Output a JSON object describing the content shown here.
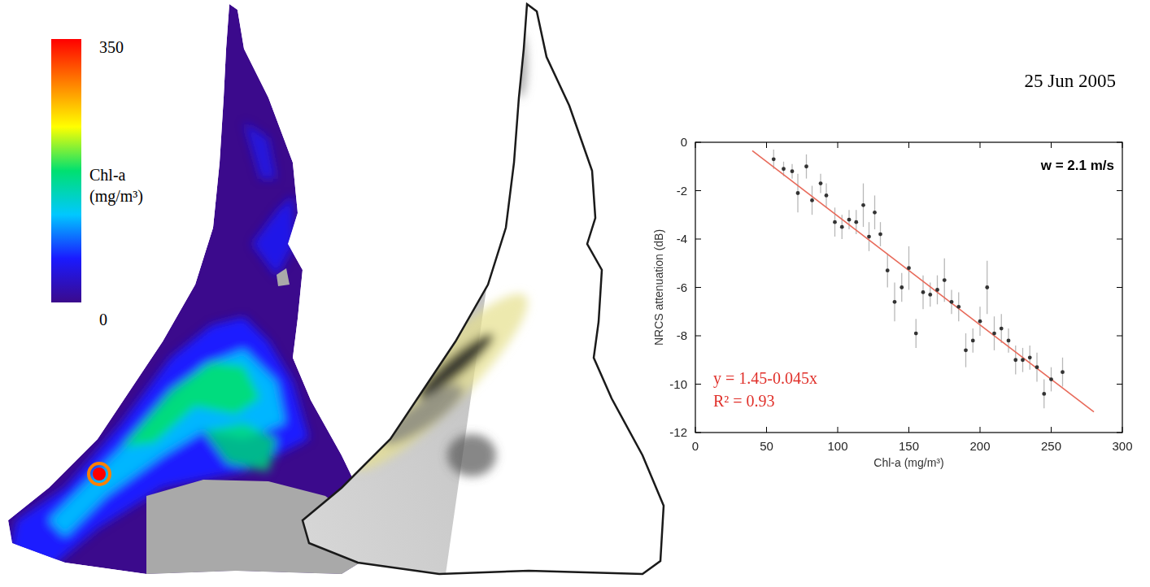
{
  "maps": {
    "colorbar": {
      "label_lines": [
        "Chl-a",
        "(mg/m³)"
      ],
      "range": [
        0,
        350
      ],
      "ticks": [
        0,
        350
      ],
      "colors": [
        "#3b0a8c",
        "#1a1aff",
        "#00c8ff",
        "#00e070",
        "#ffff00",
        "#ff8000",
        "#ff0000"
      ]
    }
  },
  "chart_data": {
    "type": "scatter",
    "title": "25 Jun 2005",
    "annotations": [
      {
        "text": "w = 2.1 m/s",
        "color": "#000000"
      },
      {
        "text": "y = 1.45-0.045x",
        "color": "#e0302a"
      },
      {
        "text": "R² = 0.93",
        "color": "#e0302a"
      }
    ],
    "x_label": "Chl-a (mg/m³)",
    "y_label": "NRCS attenuation (dB)",
    "x": [
      55,
      62,
      68,
      72,
      78,
      82,
      88,
      92,
      98,
      103,
      108,
      113,
      118,
      122,
      126,
      130,
      135,
      140,
      145,
      150,
      155,
      160,
      165,
      170,
      175,
      180,
      185,
      190,
      195,
      200,
      205,
      210,
      215,
      220,
      225,
      230,
      235,
      240,
      245,
      250,
      258
    ],
    "values": [
      -0.7,
      -1.1,
      -1.2,
      -2.1,
      -1.0,
      -2.4,
      -1.7,
      -2.2,
      -3.3,
      -3.5,
      -3.2,
      -3.3,
      -2.6,
      -3.9,
      -2.9,
      -3.8,
      -5.3,
      -6.6,
      -6.0,
      -5.2,
      -7.9,
      -6.2,
      -6.3,
      -6.1,
      -5.7,
      -6.6,
      -6.8,
      -8.6,
      -8.2,
      -7.4,
      -6.0,
      -7.9,
      -7.7,
      -8.2,
      -9.0,
      -9.0,
      -8.9,
      -9.3,
      -10.4,
      -9.8,
      -9.5
    ],
    "errors": [
      0.4,
      0.3,
      0.3,
      0.8,
      0.5,
      0.6,
      0.4,
      0.5,
      0.6,
      0.5,
      0.4,
      0.5,
      0.9,
      0.6,
      0.7,
      0.5,
      0.7,
      0.8,
      0.6,
      0.9,
      0.6,
      0.7,
      0.5,
      0.6,
      0.9,
      0.5,
      0.6,
      0.7,
      0.5,
      0.6,
      1.1,
      0.7,
      0.6,
      0.5,
      0.6,
      0.5,
      0.5,
      0.6,
      0.6,
      0.5,
      0.6
    ],
    "color": "#333333",
    "marker": "circle",
    "fit_line": {
      "x": [
        40,
        280
      ],
      "values": [
        -0.35,
        -11.15
      ],
      "color": "#e86a5a"
    },
    "xlim": [
      0,
      300
    ],
    "ylim": [
      -12,
      0
    ],
    "xticks": [
      0,
      50,
      100,
      150,
      200,
      250,
      300
    ],
    "yticks": [
      0,
      -2,
      -4,
      -6,
      -8,
      -10,
      -12
    ]
  }
}
